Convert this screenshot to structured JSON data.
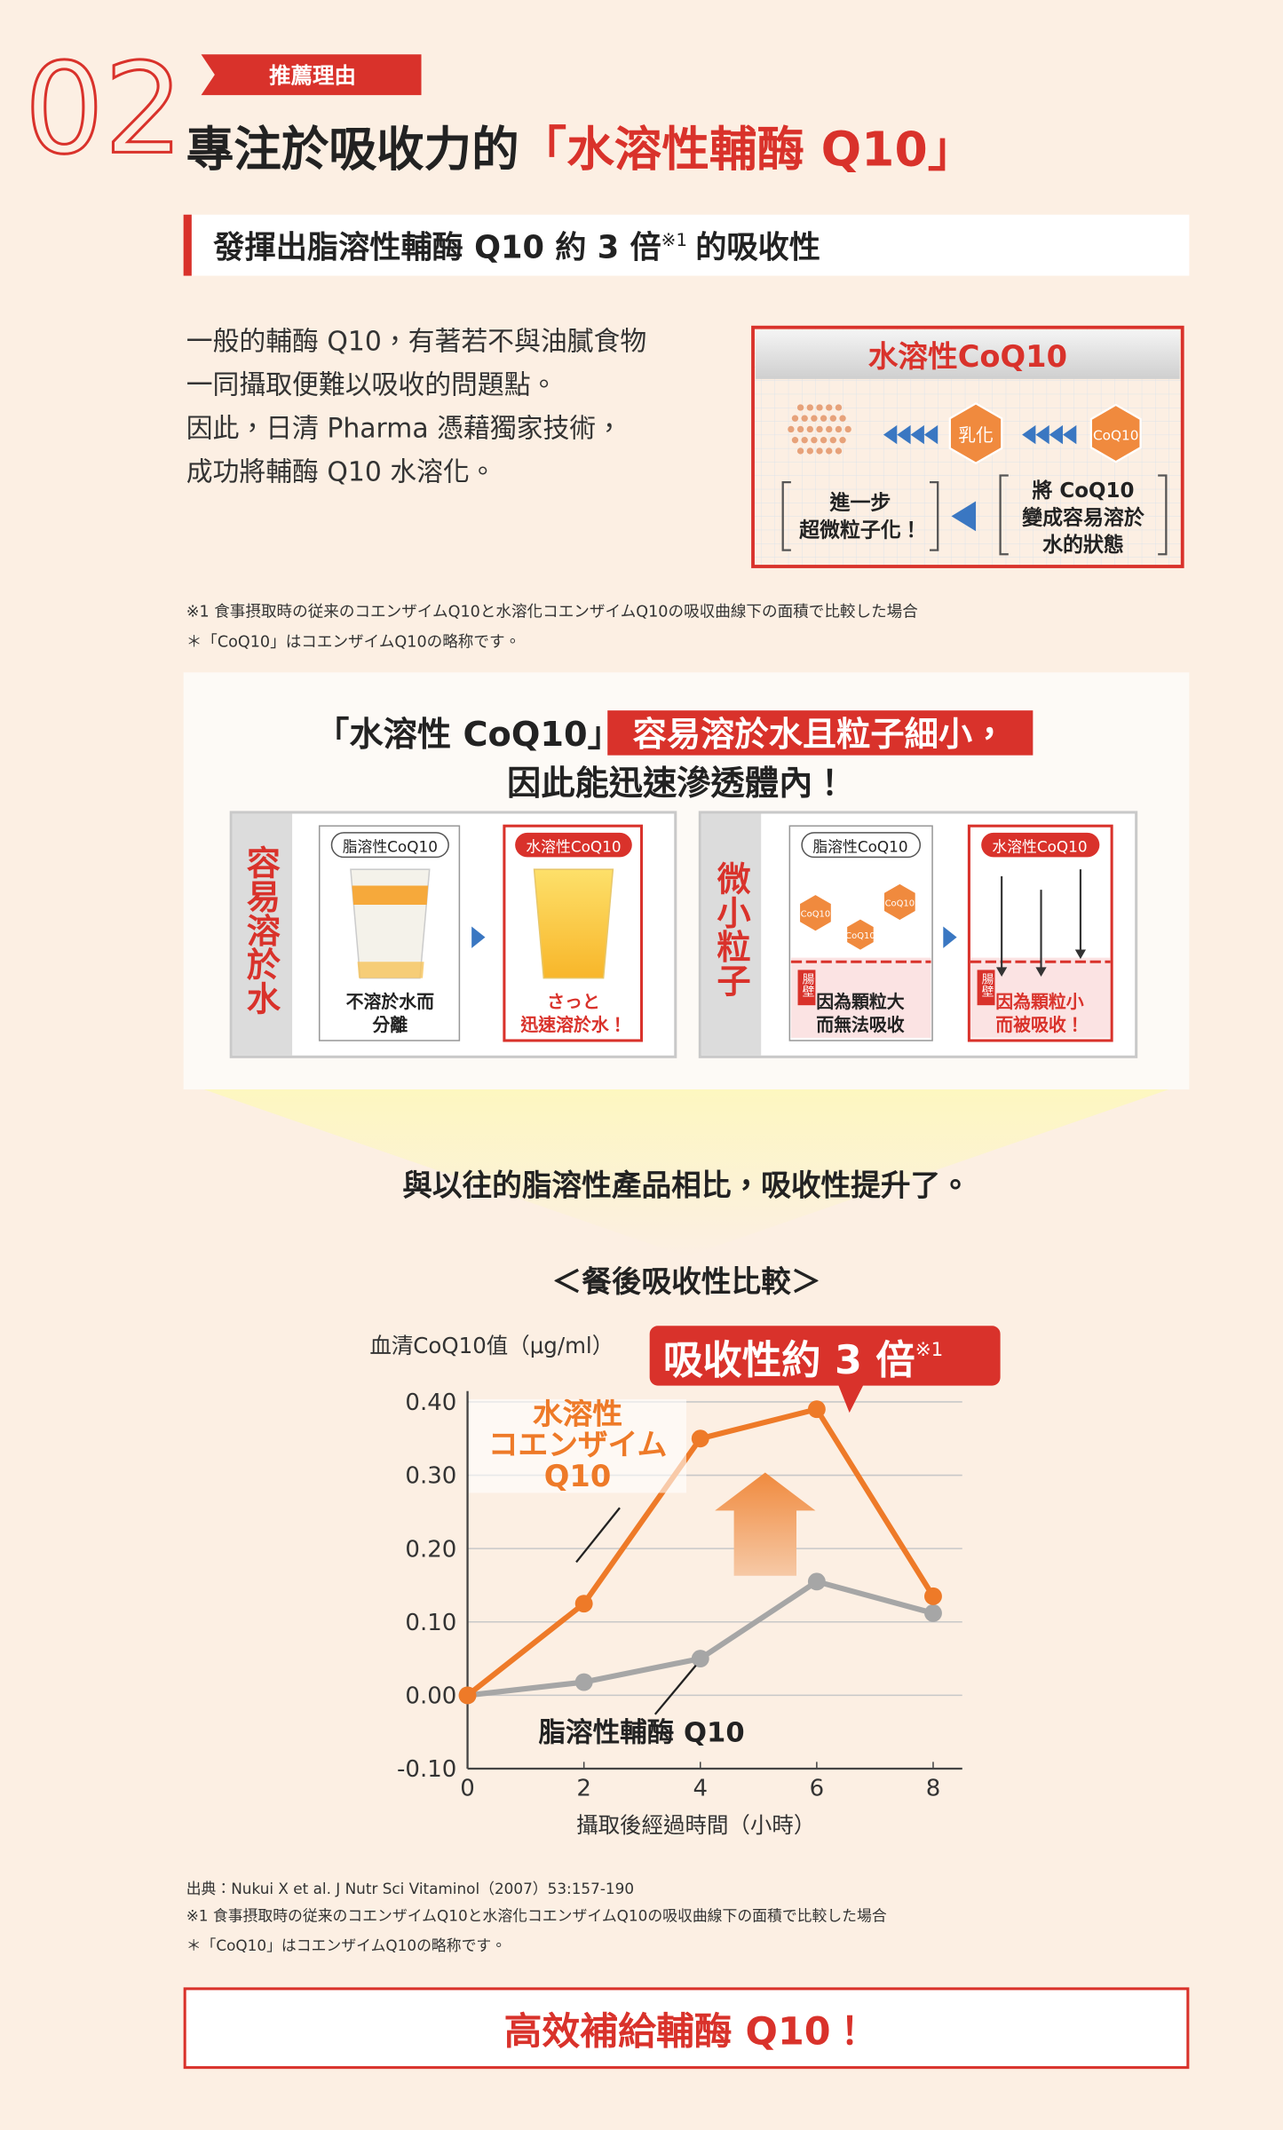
{
  "header": {
    "number": "02",
    "tag": "推薦理由",
    "title": [
      "專注於吸收力的",
      "「水溶性輔酶 Q10」"
    ]
  },
  "subtitle": {
    "text": "發揮出脂溶性輔酶 Q10 約 3 倍",
    "note": "※1",
    "tail": "的吸收性"
  },
  "intro": [
    "一般的輔酶 Q10，有著若不與油膩食物",
    "一同攝取便難以吸收的問題點。",
    "因此，日清 Pharma 憑藉獨家技術，",
    "成功將輔酶 Q10 水溶化。"
  ],
  "diagram": {
    "title": "水溶性CoQ10",
    "emulsify": "乳化",
    "particle": "CoQ10",
    "step2": [
      "進一步",
      "超微粒子化！"
    ],
    "step1": [
      "將 CoQ10",
      "變成容易溶於",
      "水的狀態"
    ]
  },
  "notes": [
    "※1 食事摂取時の従来のコエンザイムQ10と水溶化コエンザイムQ10の吸収曲線下の面積で比較した場合",
    "＊「CoQ10」はコエンザイムQ10の略称です。"
  ],
  "feature": {
    "heading": [
      "「水溶性 CoQ10」",
      "容易溶於水且粒子細小，",
      "因此能迅速滲透體內！"
    ],
    "panels": [
      {
        "label": "容易溶於水",
        "before": {
          "tag": "脂溶性CoQ10",
          "caption": [
            "不溶於水而",
            "分離"
          ]
        },
        "after": {
          "tag": "水溶性CoQ10",
          "caption": [
            "さっと",
            "迅速溶於水！"
          ]
        }
      },
      {
        "label": "微小粒子",
        "before": {
          "tag": "脂溶性CoQ10",
          "particle": "CoQ10",
          "wall": "腸壁",
          "caption": [
            "因為顆粒大",
            "而無法吸收"
          ]
        },
        "after": {
          "tag": "水溶性CoQ10",
          "wall": "腸壁",
          "caption": [
            "因為顆粒小",
            "而被吸收！"
          ]
        }
      }
    ]
  },
  "comparison": "與以往的脂溶性產品相比，吸收性提升了。",
  "chart_data": {
    "type": "line",
    "title": "＜餐後吸收性比較＞",
    "y_label": "血清CoQ10值（μg/ml）",
    "x_label": "攝取後經過時間（小時）",
    "callout": "吸收性約 3 倍",
    "callout_note": "※1",
    "x": [
      0,
      2,
      4,
      6,
      8
    ],
    "series": [
      {
        "name": "水溶性\nコエンザイム\nQ10",
        "color": "#ee7a28",
        "values": [
          0,
          0.125,
          0.35,
          0.39,
          0.135
        ]
      },
      {
        "name": "脂溶性輔酶 Q10",
        "color": "#a6a6a6",
        "values": [
          0,
          0.018,
          0.05,
          0.155,
          0.112
        ]
      }
    ],
    "xlim": [
      0,
      8.5
    ],
    "ylim": [
      -0.1,
      0.4
    ],
    "xticks": [
      0,
      2,
      4,
      6,
      8
    ],
    "yticks": [
      {
        "value": -0.1,
        "label": "-0.10"
      },
      {
        "value": 0,
        "label": "0.00"
      },
      {
        "value": 0.1,
        "label": "0.10"
      },
      {
        "value": 0.2,
        "label": "0.20"
      },
      {
        "value": 0.3,
        "label": "0.30"
      },
      {
        "value": 0.4,
        "label": "0.40"
      }
    ],
    "grid": true
  },
  "source": [
    "出典：Nukui X et al. J Nutr Sci Vitaminol（2007）53:157-190",
    "※1 食事摂取時の従来のコエンザイムQ10と水溶化コエンザイムQ10の吸収曲線下の面積で比較した場合",
    "＊「CoQ10」はコエンザイムQ10の略称です。"
  ],
  "conclusion": "高效補給輔酶 Q10！"
}
